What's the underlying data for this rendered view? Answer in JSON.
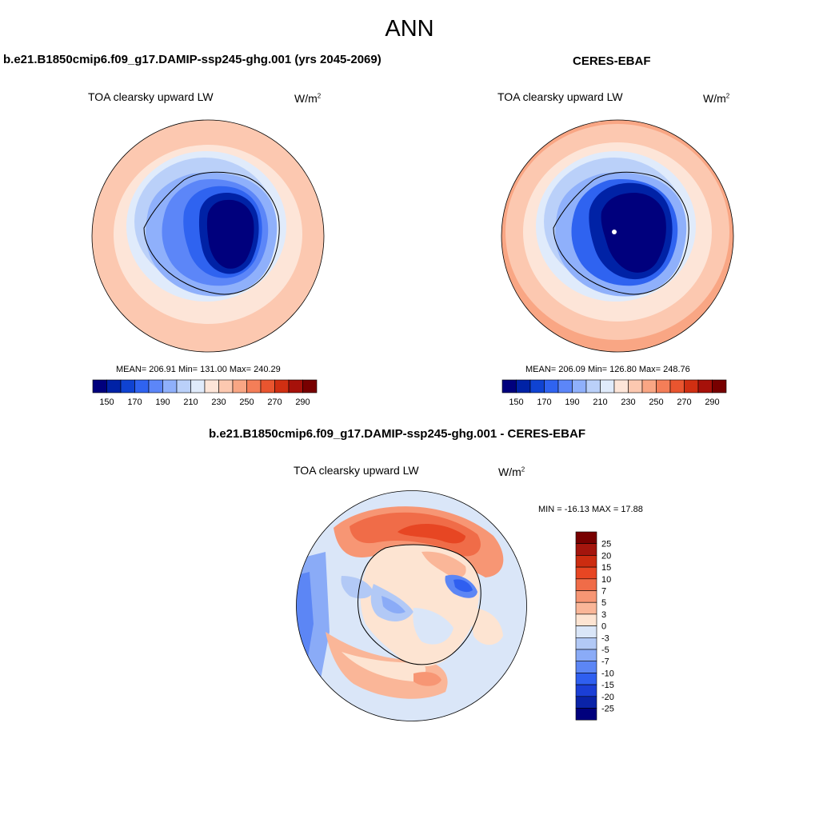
{
  "page": {
    "title": "ANN"
  },
  "palette": {
    "abs": [
      "#00007d",
      "#0022a6",
      "#0f43d2",
      "#2f63f0",
      "#5c86f8",
      "#8fb0fb",
      "#bad0f9",
      "#e0ebfb",
      "#fde5d8",
      "#fcc8b0",
      "#f9a684",
      "#f47e58",
      "#e9552f",
      "#d02f12",
      "#a6110a",
      "#780000"
    ],
    "diff": [
      "#780000",
      "#a4150d",
      "#cc2c10",
      "#e74623",
      "#f06c48",
      "#f79674",
      "#fab698",
      "#fde4d2",
      "#dae6f8",
      "#b2c9f6",
      "#8aabf7",
      "#5c86f5",
      "#2f5ff0",
      "#1b3fd6",
      "#0a23a8",
      "#00007d"
    ]
  },
  "panels": {
    "model": {
      "title": "b.e21.B1850cmip6.f09_g17.DAMIP-ssp245-ghg.001 (yrs 2045-2069)",
      "variable": "TOA clearsky upward LW",
      "units": "W/m",
      "units_sup": "2",
      "stats": "MEAN= 206.91  Min= 131.00  Max= 240.29",
      "colorbar_ticks": [
        "150",
        "170",
        "190",
        "210",
        "230",
        "250",
        "270",
        "290"
      ]
    },
    "obs": {
      "title": "CERES-EBAF",
      "variable": "TOA clearsky upward LW",
      "units": "W/m",
      "units_sup": "2",
      "stats": "MEAN= 206.09  Min= 126.80  Max= 248.76",
      "colorbar_ticks": [
        "150",
        "170",
        "190",
        "210",
        "230",
        "250",
        "270",
        "290"
      ]
    },
    "diff": {
      "title": "b.e21.B1850cmip6.f09_g17.DAMIP-ssp245-ghg.001 - CERES-EBAF",
      "variable": "TOA clearsky upward LW",
      "units": "W/m",
      "units_sup": "2",
      "stats": "MIN = -16.13 MAX =  17.88",
      "colorbar_ticks": [
        "25",
        "20",
        "15",
        "10",
        "7",
        "5",
        "3",
        "0",
        "-3",
        "-5",
        "-7",
        "-10",
        "-15",
        "-20",
        "-25"
      ]
    }
  }
}
